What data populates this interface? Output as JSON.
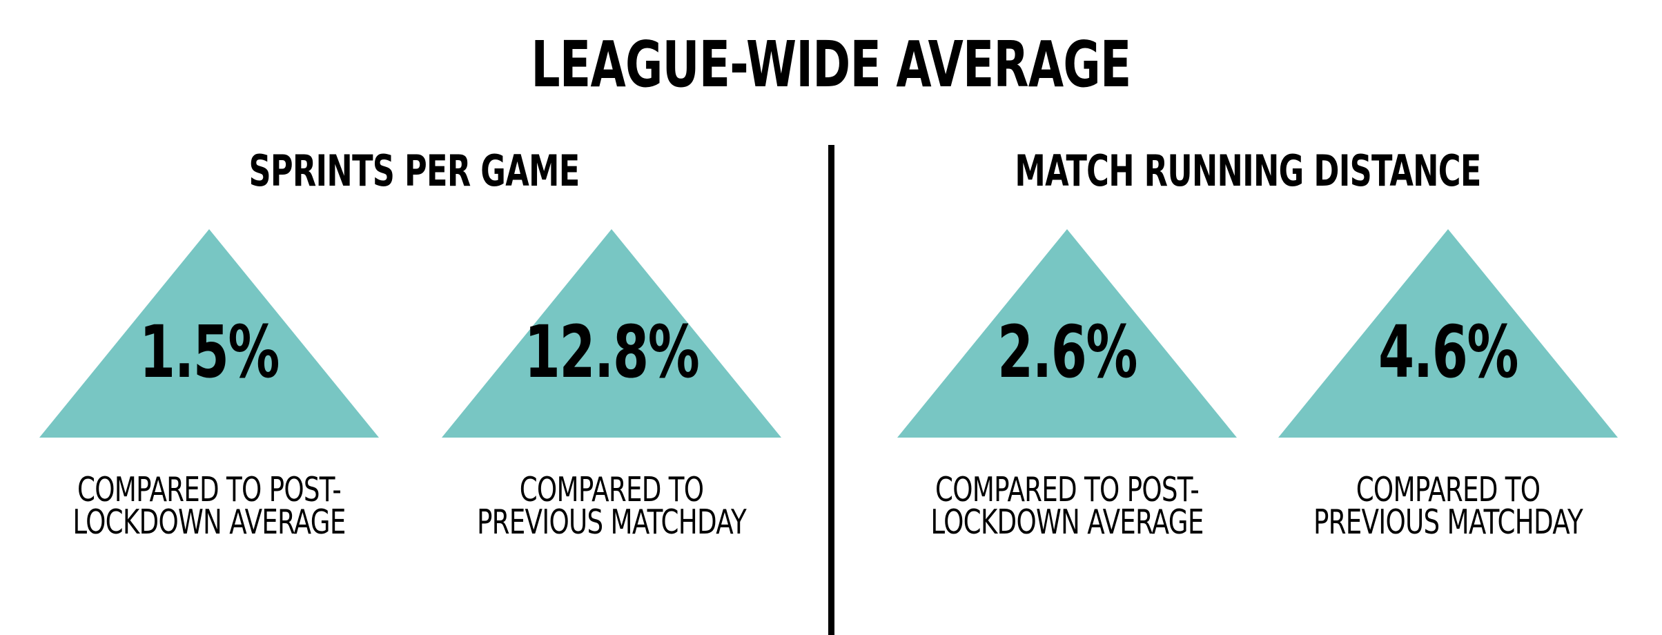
{
  "title": "LEAGUE-WIDE AVERAGE",
  "accent_color": "#78C6C3",
  "sections": [
    {
      "title": "SPRINTS PER GAME",
      "cards": [
        {
          "icon": "up-triangle-icon",
          "value": "1.5%",
          "caption_line1": "COMPARED TO POST-",
          "caption_line2": "LOCKDOWN AVERAGE"
        },
        {
          "icon": "up-triangle-icon",
          "value": "12.8%",
          "caption_line1": "COMPARED TO",
          "caption_line2": "PREVIOUS MATCHDAY"
        }
      ]
    },
    {
      "title": "MATCH RUNNING DISTANCE",
      "cards": [
        {
          "icon": "up-triangle-icon",
          "value": "2.6%",
          "caption_line1": "COMPARED TO POST-",
          "caption_line2": "LOCKDOWN AVERAGE"
        },
        {
          "icon": "up-triangle-icon",
          "value": "4.6%",
          "caption_line1": "COMPARED TO",
          "caption_line2": "PREVIOUS MATCHDAY"
        }
      ]
    }
  ]
}
